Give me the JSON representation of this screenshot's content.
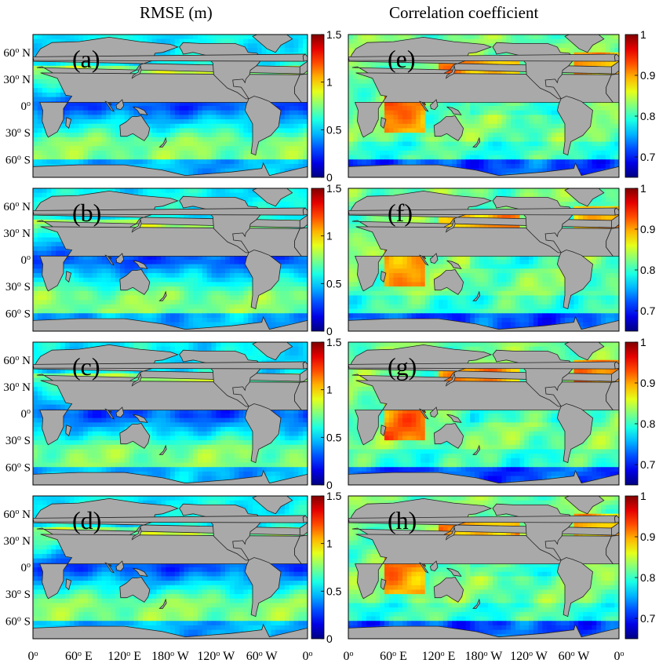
{
  "column_titles": {
    "left": "RMSE (m)",
    "right": "Correlation  coefficient"
  },
  "colors": {
    "land": "#a9a9a9",
    "coast": "#222222",
    "colormap": "jet"
  },
  "chart_data": [
    {
      "type": "heatmap",
      "variable": "RMSE (m)",
      "panels": [
        "(a)",
        "(b)",
        "(c)",
        "(d)"
      ],
      "colorbar": {
        "range": [
          0,
          1.5
        ],
        "ticks": [
          "0",
          "0.5",
          "1",
          "1.5"
        ]
      },
      "y_ticks": [
        "60o N",
        "30o N",
        "0o",
        "30o S",
        "60o S"
      ],
      "x_ticks": [
        "0o",
        "60o E",
        "120o E",
        "180o W",
        "120o W",
        "60o W",
        "0o"
      ]
    },
    {
      "type": "heatmap",
      "variable": "Correlation coefficient",
      "panels": [
        "(e)",
        "(f)",
        "(g)",
        "(h)"
      ],
      "colorbar": {
        "range": [
          0.65,
          1.0
        ],
        "ticks": [
          "0.7",
          "0.8",
          "0.9",
          "1"
        ]
      },
      "y_ticks": [
        "60o N",
        "30o N",
        "0o",
        "30o S",
        "60o S"
      ],
      "x_ticks": [
        "0o",
        "60o E",
        "120o E",
        "180o W",
        "120o W",
        "60o W",
        "0o"
      ]
    }
  ]
}
